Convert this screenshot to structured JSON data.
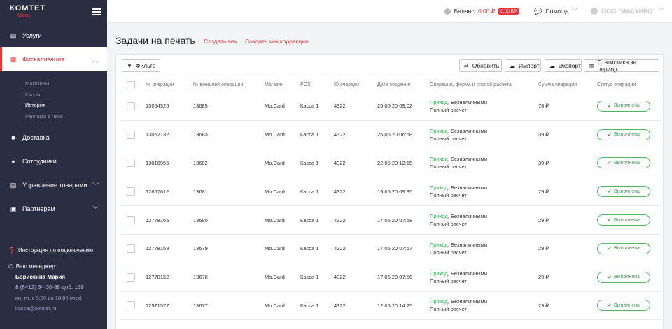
{
  "sidebar": {
    "logo_top": "КОМТЕТ",
    "logo_bottom": "Касса",
    "items": [
      {
        "label": "Услуги",
        "icon": "list-icon"
      },
      {
        "label": "Фискализация",
        "icon": "calculator-icon"
      },
      {
        "label": "Доставка",
        "icon": "truck-icon"
      },
      {
        "label": "Сотрудники",
        "icon": "users-icon"
      },
      {
        "label": "Управление товарами",
        "icon": "list-icon"
      },
      {
        "label": "Партнерам",
        "icon": "briefcase-icon"
      }
    ],
    "subitems": [
      "Магазины",
      "Кассы",
      "История",
      "Реклама в чеке"
    ],
    "instruction": "Инструкция по подключению",
    "manager_label": "Ваш менеджер:",
    "manager_name": "Борискина Мария",
    "manager_phone": "8 (8412) 64-30-85 доб. 159",
    "manager_hours": "пн.-пт. с 9:00 до 18:00 (мск)",
    "manager_email": "kassa@komtet.ru"
  },
  "topbar": {
    "balance_label": "Баланс:",
    "balance_value": "0.00 ₽",
    "balance_badge": "0.00 БР",
    "help_label": "Помощь",
    "user_name": "ООО \"МАСКИРО\""
  },
  "page": {
    "title": "Задачи на печать",
    "link_create": "Создать чек",
    "link_correction": "Создать чек коррекции"
  },
  "toolbar": {
    "filter": "Фильтр",
    "refresh": "Обновить",
    "import": "Импорт",
    "export": "Экспорт",
    "stats": "Статистика за период"
  },
  "table": {
    "columns": [
      "№ операции",
      "№ внешней операции",
      "Магазин",
      "POS",
      "ID очереди",
      "Дата создания",
      "Операция, форма и способ расчета",
      "Сумма операции",
      "Статус операции"
    ],
    "rows": [
      {
        "op": "13064325",
        "ext": "13685",
        "shop": "Mo.Card",
        "pos": "Касса 1",
        "queue": "4322",
        "date": "25.05.20 09:02",
        "type": "Приход",
        "form": ", Безналичными",
        "method": "Полный расчет",
        "sum": "78 ₽",
        "status": "Выполнена"
      },
      {
        "op": "13062132",
        "ext": "13683",
        "shop": "Mo.Card",
        "pos": "Касса 1",
        "queue": "4322",
        "date": "25.05.20 06:58",
        "type": "Приход",
        "form": ", Безналичными",
        "method": "Полный расчет",
        "sum": "39 ₽",
        "status": "Выполнена"
      },
      {
        "op": "13016955",
        "ext": "13682",
        "shop": "Mo.Card",
        "pos": "Касса 1",
        "queue": "4322",
        "date": "22.05.20 12:15",
        "type": "Приход",
        "form": ", Безналичными",
        "method": "Полный расчет",
        "sum": "39 ₽",
        "status": "Выполнена"
      },
      {
        "op": "12867612",
        "ext": "13681",
        "shop": "Mo.Card",
        "pos": "Касса 1",
        "queue": "4322",
        "date": "19.05.20 09:35",
        "type": "Приход",
        "form": ", Безналичными",
        "method": "Полный расчет",
        "sum": "29 ₽",
        "status": "Выполнена"
      },
      {
        "op": "12778165",
        "ext": "13680",
        "shop": "Mo.Card",
        "pos": "Касса 1",
        "queue": "4322",
        "date": "17.05.20 07:58",
        "type": "Приход",
        "form": ", Безналичными",
        "method": "Полный расчет",
        "sum": "29 ₽",
        "status": "Выполнена"
      },
      {
        "op": "12778159",
        "ext": "13679",
        "shop": "Mo.Card",
        "pos": "Касса 1",
        "queue": "4322",
        "date": "17.05.20 07:57",
        "type": "Приход",
        "form": ", Безналичными",
        "method": "Полный расчет",
        "sum": "29 ₽",
        "status": "Выполнена"
      },
      {
        "op": "12778152",
        "ext": "13678",
        "shop": "Mo.Card",
        "pos": "Касса 1",
        "queue": "4322",
        "date": "17.05.20 07:56",
        "type": "Приход",
        "form": ", Безналичными",
        "method": "Полный расчет",
        "sum": "29 ₽",
        "status": "Выполнена"
      },
      {
        "op": "12571577",
        "ext": "13677",
        "shop": "Mo.Card",
        "pos": "Касса 1",
        "queue": "4322",
        "date": "12.05.20 14:25",
        "type": "Приход",
        "form": ", Безналичными",
        "method": "Полный расчет",
        "sum": "29 ₽",
        "status": "Выполнена"
      }
    ]
  },
  "colors": {
    "accent": "#e8343a",
    "sidebar": "#2b2d42",
    "success": "#3aa55a"
  }
}
